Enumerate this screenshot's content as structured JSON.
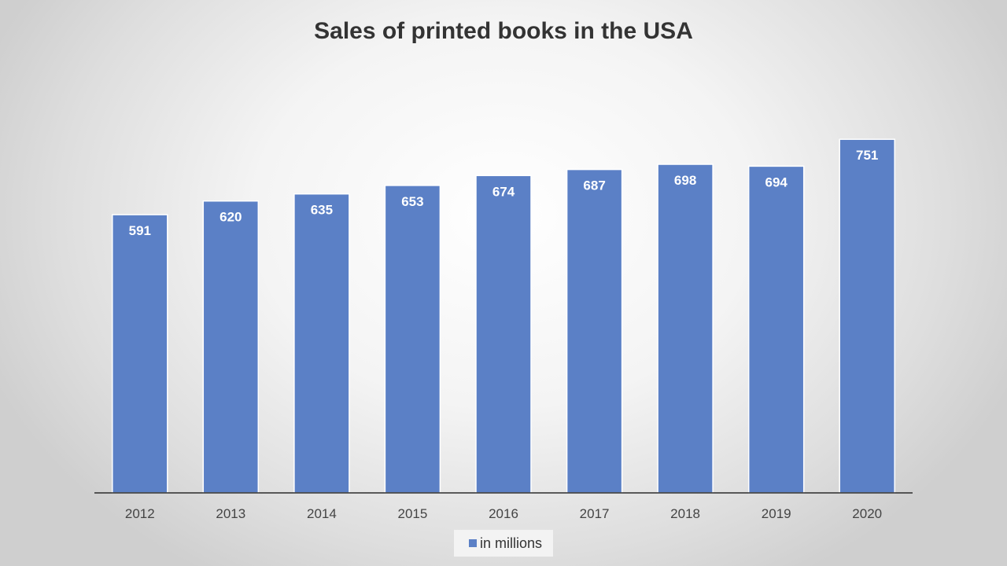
{
  "chart_data": {
    "type": "bar",
    "title": "Sales of printed books in the USA",
    "categories": [
      "2012",
      "2013",
      "2014",
      "2015",
      "2016",
      "2017",
      "2018",
      "2019",
      "2020"
    ],
    "series": [
      {
        "name": "in millions",
        "values": [
          591,
          620,
          635,
          653,
          674,
          687,
          698,
          694,
          751
        ],
        "color": "#5b80c6"
      }
    ],
    "ylim": [
      0,
      800
    ],
    "grid": false,
    "legend": "bottom",
    "data_labels": true
  }
}
